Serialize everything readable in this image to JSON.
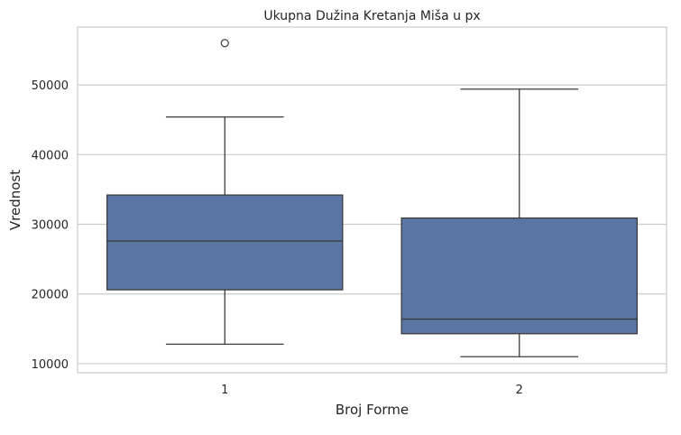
{
  "chart_data": {
    "type": "box",
    "title": "Ukupna Dužina Kretanja Miša u px",
    "xlabel": "Broj Forme",
    "ylabel": "Vrednost",
    "categories": [
      "1",
      "2"
    ],
    "ylim": [
      8700,
      58300
    ],
    "yticks": [
      10000,
      20000,
      30000,
      40000,
      50000
    ],
    "grid": true,
    "box_color": "#5875a4",
    "line_color": "#3d3d3d",
    "boxes": [
      {
        "category": "1",
        "whisker_low": 12800,
        "q1": 20600,
        "median": 27600,
        "q3": 34200,
        "whisker_high": 45400,
        "outliers": [
          56000
        ]
      },
      {
        "category": "2",
        "whisker_low": 11000,
        "q1": 14300,
        "median": 16400,
        "q3": 30900,
        "whisker_high": 49400,
        "outliers": []
      }
    ]
  }
}
